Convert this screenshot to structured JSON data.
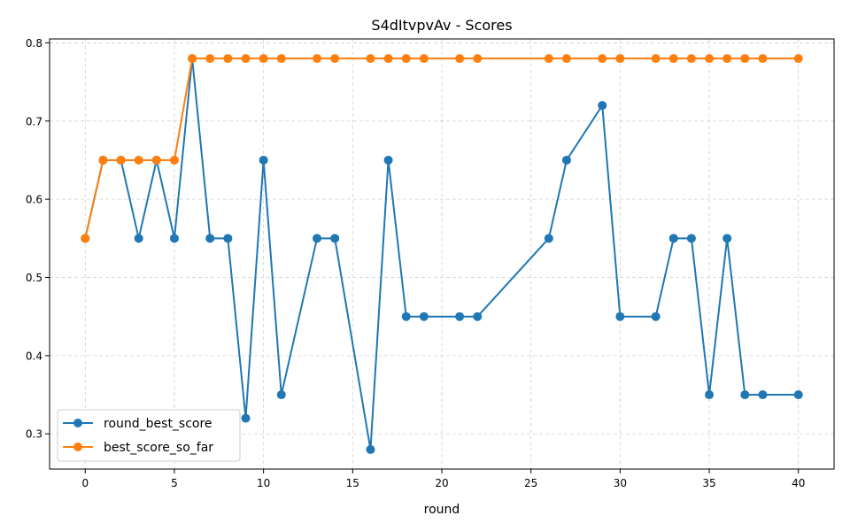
{
  "chart_data": {
    "type": "line",
    "title": "S4dItvpvAv - Scores",
    "xlabel": "round",
    "ylabel": "",
    "xlim": [
      -2,
      42
    ],
    "ylim": [
      0.255,
      0.805
    ],
    "xticks": [
      0,
      5,
      10,
      15,
      20,
      25,
      30,
      35,
      40
    ],
    "yticks": [
      0.3,
      0.4,
      0.5,
      0.6,
      0.7,
      0.8
    ],
    "grid": true,
    "legend_position": "lower-left",
    "series": [
      {
        "name": "round_best_score",
        "color": "#1f77b4",
        "x": [
          0,
          1,
          2,
          3,
          4,
          5,
          6,
          7,
          8,
          9,
          10,
          11,
          13,
          14,
          16,
          17,
          18,
          19,
          21,
          22,
          26,
          27,
          29,
          30,
          32,
          33,
          34,
          35,
          36,
          37,
          38,
          40
        ],
        "y": [
          0.55,
          0.65,
          0.65,
          0.55,
          0.65,
          0.55,
          0.78,
          0.55,
          0.55,
          0.32,
          0.65,
          0.35,
          0.55,
          0.55,
          0.28,
          0.65,
          0.45,
          0.45,
          0.45,
          0.45,
          0.55,
          0.65,
          0.72,
          0.45,
          0.45,
          0.55,
          0.55,
          0.35,
          0.55,
          0.35,
          0.35,
          0.35
        ]
      },
      {
        "name": "best_score_so_far",
        "color": "#ff7f0e",
        "x": [
          0,
          1,
          2,
          3,
          4,
          5,
          6,
          7,
          8,
          9,
          10,
          11,
          13,
          14,
          16,
          17,
          18,
          19,
          21,
          22,
          26,
          27,
          29,
          30,
          32,
          33,
          34,
          35,
          36,
          37,
          38,
          40
        ],
        "y": [
          0.55,
          0.65,
          0.65,
          0.65,
          0.65,
          0.65,
          0.78,
          0.78,
          0.78,
          0.78,
          0.78,
          0.78,
          0.78,
          0.78,
          0.78,
          0.78,
          0.78,
          0.78,
          0.78,
          0.78,
          0.78,
          0.78,
          0.78,
          0.78,
          0.78,
          0.78,
          0.78,
          0.78,
          0.78,
          0.78,
          0.78,
          0.78
        ]
      }
    ]
  }
}
